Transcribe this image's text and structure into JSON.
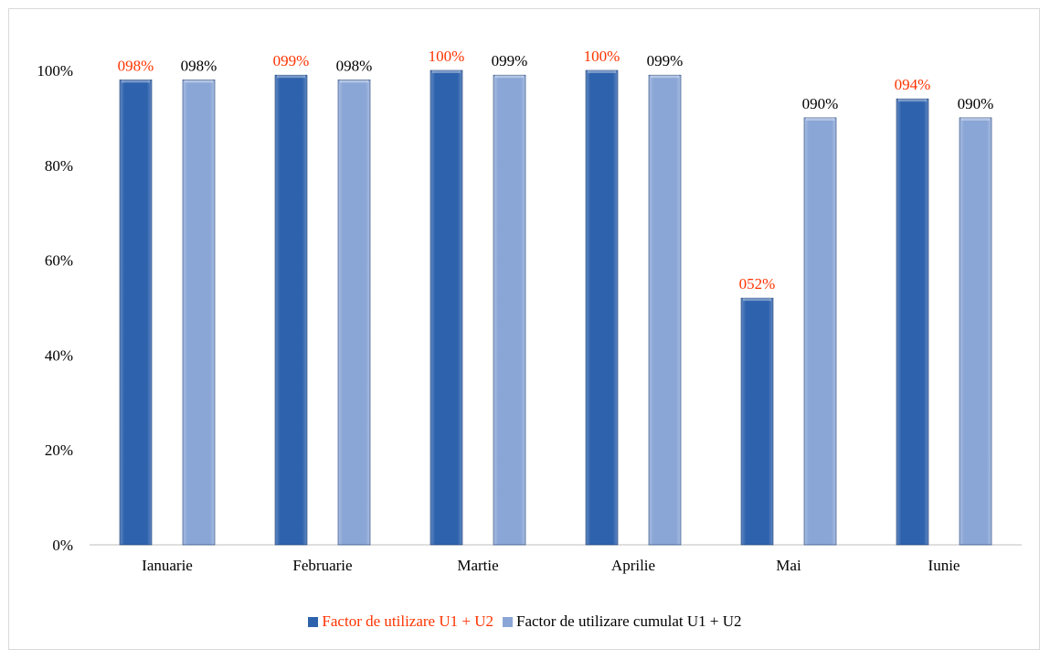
{
  "chart_data": {
    "type": "bar",
    "categories": [
      "Ianuarie",
      "Februarie",
      "Martie",
      "Aprilie",
      "Mai",
      "Iunie"
    ],
    "series": [
      {
        "name": "Factor de utilizare U1 + U2",
        "values": [
          98,
          99,
          100,
          100,
          52,
          94
        ],
        "labels": [
          "098%",
          "099%",
          "100%",
          "100%",
          "052%",
          "094%"
        ],
        "color": "#2e62ad",
        "label_color": "#ff3300"
      },
      {
        "name": "Factor de utilizare cumulat U1 + U2",
        "values": [
          98,
          98,
          99,
          99,
          90,
          90
        ],
        "labels": [
          "098%",
          "098%",
          "099%",
          "099%",
          "090%",
          "090%"
        ],
        "color": "#8aa6d6",
        "label_color": "#000000"
      }
    ],
    "y_ticks": [
      "0%",
      "20%",
      "40%",
      "60%",
      "80%",
      "100%"
    ],
    "ylim": [
      0,
      100
    ],
    "grid": false,
    "legend_position": "bottom"
  }
}
